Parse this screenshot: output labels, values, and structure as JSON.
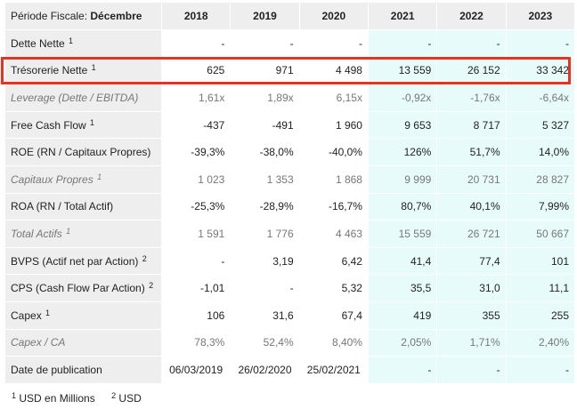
{
  "header": {
    "period_label": "Période Fiscale:",
    "period_value": "Décembre",
    "years": [
      "2018",
      "2019",
      "2020",
      "2021",
      "2022",
      "2023"
    ]
  },
  "rows": [
    {
      "label": "Dette Nette",
      "sup": "1",
      "italic": false,
      "values": [
        "-",
        "-",
        "-",
        "-",
        "-",
        "-"
      ]
    },
    {
      "label": "Trésorerie Nette",
      "sup": "1",
      "italic": false,
      "values": [
        "625",
        "971",
        "4 498",
        "13 559",
        "26 152",
        "33 342"
      ]
    },
    {
      "label": "Leverage (Dette / EBITDA)",
      "sup": "",
      "italic": true,
      "values": [
        "1,61x",
        "1,89x",
        "6,15x",
        "-0,92x",
        "-1,76x",
        "-6,64x"
      ]
    },
    {
      "label": "Free Cash Flow",
      "sup": "1",
      "italic": false,
      "values": [
        "-437",
        "-491",
        "1 960",
        "9 653",
        "8 717",
        "5 327"
      ]
    },
    {
      "label": "ROE (RN / Capitaux Propres)",
      "sup": "",
      "italic": false,
      "values": [
        "-39,3%",
        "-38,0%",
        "-40,0%",
        "126%",
        "51,7%",
        "14,0%"
      ]
    },
    {
      "label": "Capitaux Propres",
      "sup": "1",
      "italic": true,
      "values": [
        "1 023",
        "1 353",
        "1 868",
        "9 999",
        "20 731",
        "28 827"
      ]
    },
    {
      "label": "ROA (RN / Total Actif)",
      "sup": "",
      "italic": false,
      "values": [
        "-25,3%",
        "-28,9%",
        "-16,7%",
        "80,7%",
        "40,1%",
        "7,99%"
      ]
    },
    {
      "label": "Total Actifs",
      "sup": "1",
      "italic": true,
      "values": [
        "1 591",
        "1 776",
        "4 463",
        "15 559",
        "26 721",
        "50 667"
      ]
    },
    {
      "label": "BVPS (Actif net par Action)",
      "sup": "2",
      "italic": false,
      "values": [
        "-",
        "3,19",
        "6,42",
        "41,4",
        "77,4",
        "101"
      ]
    },
    {
      "label": "CPS (Cash Flow Par Action)",
      "sup": "2",
      "italic": false,
      "values": [
        "-1,01",
        "-",
        "5,32",
        "35,5",
        "31,0",
        "11,1"
      ]
    },
    {
      "label": "Capex",
      "sup": "1",
      "italic": false,
      "values": [
        "106",
        "31,6",
        "67,4",
        "419",
        "355",
        "255"
      ]
    },
    {
      "label": "Capex / CA",
      "sup": "",
      "italic": true,
      "values": [
        "78,3%",
        "52,4%",
        "8,40%",
        "2,05%",
        "1,71%",
        "2,40%"
      ]
    },
    {
      "label": "Date de publication",
      "sup": "",
      "italic": false,
      "values": [
        "06/03/2019",
        "26/02/2020",
        "25/02/2021",
        "-",
        "-",
        "-"
      ]
    }
  ],
  "footnotes": [
    {
      "num": "1",
      "text": "USD en Millions"
    },
    {
      "num": "2",
      "text": "USD"
    }
  ],
  "colors": {
    "highlight_border": "#e8321f",
    "estimate_bg": "#e8fbfb",
    "label_bg": "#eeeeee"
  }
}
